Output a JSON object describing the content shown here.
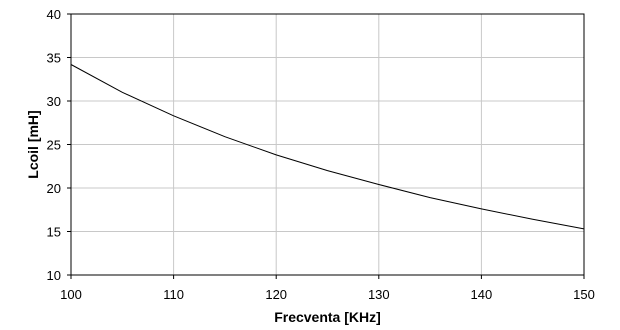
{
  "chart_data": {
    "type": "line",
    "xlabel": "Frecventa  [KHz]",
    "ylabel": "Lcoil [mH]",
    "xlim": [
      100,
      150
    ],
    "ylim": [
      10,
      40
    ],
    "x_ticks": [
      100,
      110,
      120,
      130,
      140,
      150
    ],
    "y_ticks": [
      10,
      15,
      20,
      25,
      30,
      35,
      40
    ],
    "grid": true,
    "legend": "none",
    "series": [
      {
        "color": "#000000",
        "x": [
          100,
          105,
          110,
          115,
          120,
          125,
          130,
          135,
          140,
          145,
          150
        ],
        "y": [
          34.2,
          31.0,
          28.3,
          25.9,
          23.8,
          22.0,
          20.4,
          18.9,
          17.6,
          16.4,
          15.3
        ]
      }
    ]
  }
}
